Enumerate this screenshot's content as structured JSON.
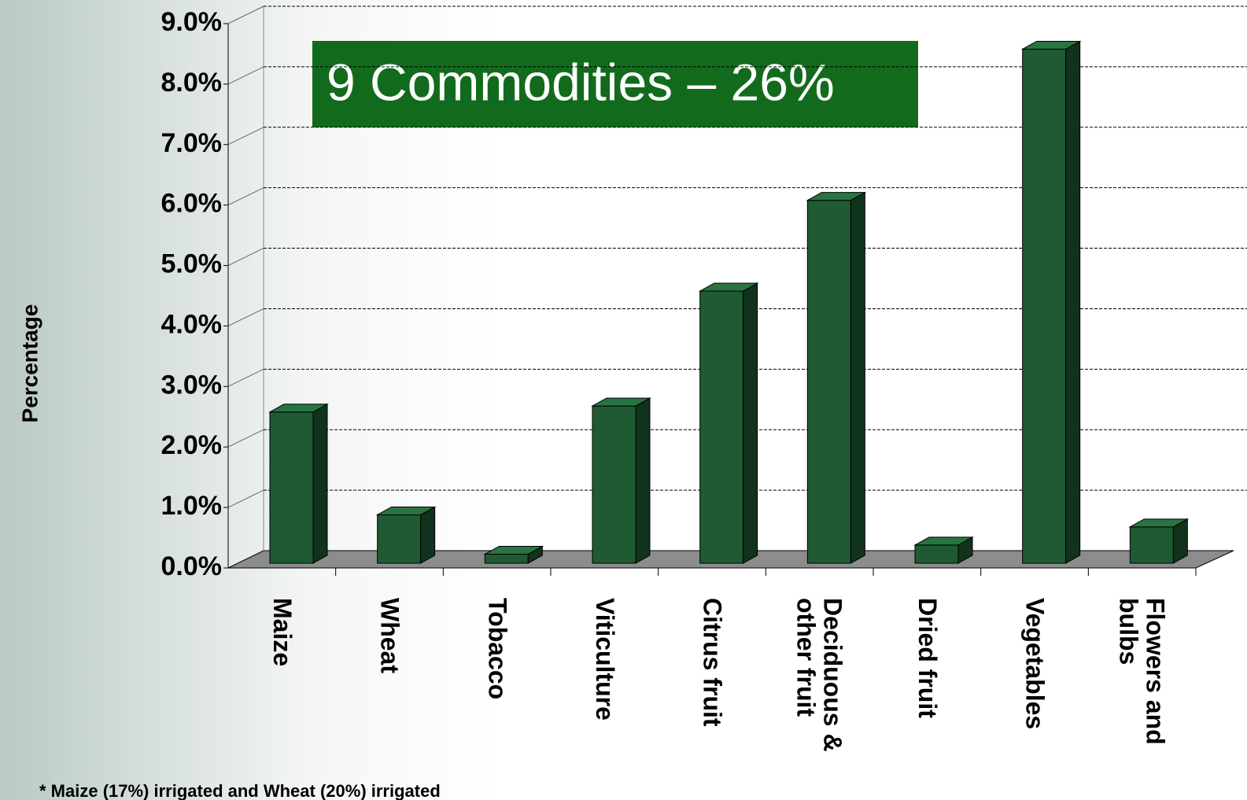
{
  "chart_data": {
    "type": "bar3d",
    "annotation": "9 Commodities – 26%",
    "ylabel": "Percentage",
    "footnote": "* Maize (17%) irrigated and Wheat (20%) irrigated",
    "categories": [
      "Maize",
      "Wheat",
      "Tobacco",
      "Viticulture",
      "Citrus fruit",
      "Deciduous & other fruit",
      "Dried fruit",
      "Vegetables",
      "Flowers and bulbs"
    ],
    "values": [
      2.5,
      0.8,
      0.15,
      2.6,
      4.5,
      6.0,
      0.3,
      8.5,
      0.6
    ],
    "color": "#1f5a32",
    "ylim": [
      0,
      9
    ],
    "yticks": [
      {
        "value": 0,
        "label": "0.0%"
      },
      {
        "value": 1,
        "label": "1.0%"
      },
      {
        "value": 2,
        "label": "2.0%"
      },
      {
        "value": 3,
        "label": "3.0%"
      },
      {
        "value": 4,
        "label": "4.0%"
      },
      {
        "value": 5,
        "label": "5.0%"
      },
      {
        "value": 6,
        "label": "6.0%"
      },
      {
        "value": 7,
        "label": "7.0%"
      },
      {
        "value": 8,
        "label": "8.0%"
      },
      {
        "value": 9,
        "label": "9.0%"
      }
    ],
    "grid": true
  }
}
